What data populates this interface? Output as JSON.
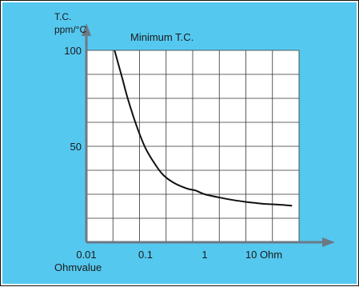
{
  "colors": {
    "background": "#55c8ef",
    "plot_area": "#ffffff",
    "grid": "#333333",
    "axis_arrow": "#6b7a86",
    "curve": "#111111"
  },
  "chart_data": {
    "type": "line",
    "title": "",
    "ylabel_line1": "T.C.",
    "ylabel_line2": "ppm/°C",
    "xlabel": "Ohmvalue",
    "x_scale": "log",
    "x_ticks": [
      {
        "label": "0.01",
        "value": 0.01
      },
      {
        "label": "0.1",
        "value": 0.1
      },
      {
        "label": "1",
        "value": 1
      },
      {
        "label": "10 Ohm",
        "value": 10
      }
    ],
    "y_ticks": [
      {
        "label": "50",
        "value": 50
      },
      {
        "label": "100",
        "value": 100
      }
    ],
    "xlim": [
      0.01,
      30
    ],
    "ylim": [
      0,
      100
    ],
    "grid": true,
    "annotation": "Minimum T.C.",
    "series": [
      {
        "name": "",
        "x": [
          0.03,
          0.04,
          0.05,
          0.07,
          0.1,
          0.15,
          0.2,
          0.3,
          0.5,
          0.7,
          1,
          2,
          3,
          5,
          7,
          10,
          20,
          30
        ],
        "y": [
          100,
          86,
          75,
          61,
          49,
          40,
          35,
          31,
          28,
          27,
          25,
          23,
          22,
          21,
          20.5,
          20,
          19.5,
          19
        ]
      }
    ]
  }
}
